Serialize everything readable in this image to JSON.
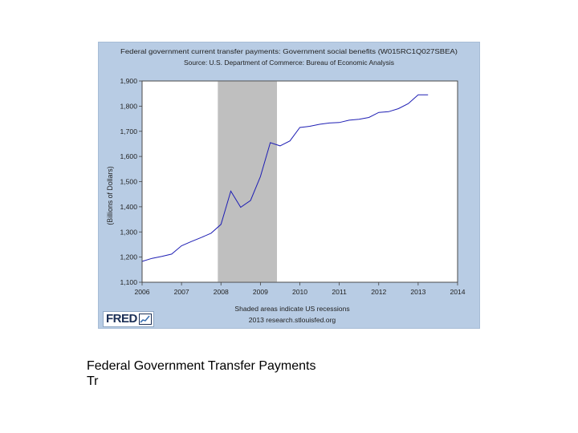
{
  "chart_data": {
    "type": "line",
    "title": "Federal government current transfer payments: Government social benefits (W015RC1Q027SBEA)",
    "subtitle": "Source: U.S. Department of Commerce: Bureau of Economic Analysis",
    "ylabel": "(Billions of Dollars)",
    "xlabel": "",
    "xlim": [
      2006,
      2014
    ],
    "ylim": [
      1100,
      1900
    ],
    "x_ticks": [
      "2006",
      "2007",
      "2008",
      "2009",
      "2010",
      "2011",
      "2012",
      "2013",
      "2014"
    ],
    "y_ticks": [
      "1,100",
      "1,200",
      "1,300",
      "1,400",
      "1,500",
      "1,600",
      "1,700",
      "1,800",
      "1,900"
    ],
    "grid": false,
    "line_color": "#1f1fb4",
    "recession_color": "#bfbfbf",
    "recession": [
      2007.92,
      2009.42
    ],
    "series": [
      {
        "x": [
          2006.0,
          2006.25,
          2006.5,
          2006.75,
          2007.0,
          2007.25,
          2007.5,
          2007.75,
          2008.0,
          2008.25,
          2008.5,
          2008.75,
          2009.0,
          2009.25,
          2009.5,
          2009.75,
          2010.0,
          2010.25,
          2010.5,
          2010.75,
          2011.0,
          2011.25,
          2011.5,
          2011.75,
          2012.0,
          2012.25,
          2012.5,
          2012.75,
          2013.0,
          2013.25
        ],
        "values": [
          1183,
          1195,
          1203,
          1212,
          1245,
          1262,
          1278,
          1295,
          1330,
          1462,
          1398,
          1425,
          1520,
          1655,
          1642,
          1662,
          1715,
          1720,
          1728,
          1733,
          1735,
          1744,
          1748,
          1755,
          1775,
          1778,
          1790,
          1810,
          1845,
          1845
        ]
      }
    ]
  },
  "footer": {
    "recession_note": "Shaded areas indicate US recessions",
    "source_note": "2013 research.stlouisfed.org"
  },
  "logo": {
    "text": "FRED"
  },
  "caption": {
    "line1": "Federal Government Transfer Payments",
    "line2": "Tr"
  }
}
